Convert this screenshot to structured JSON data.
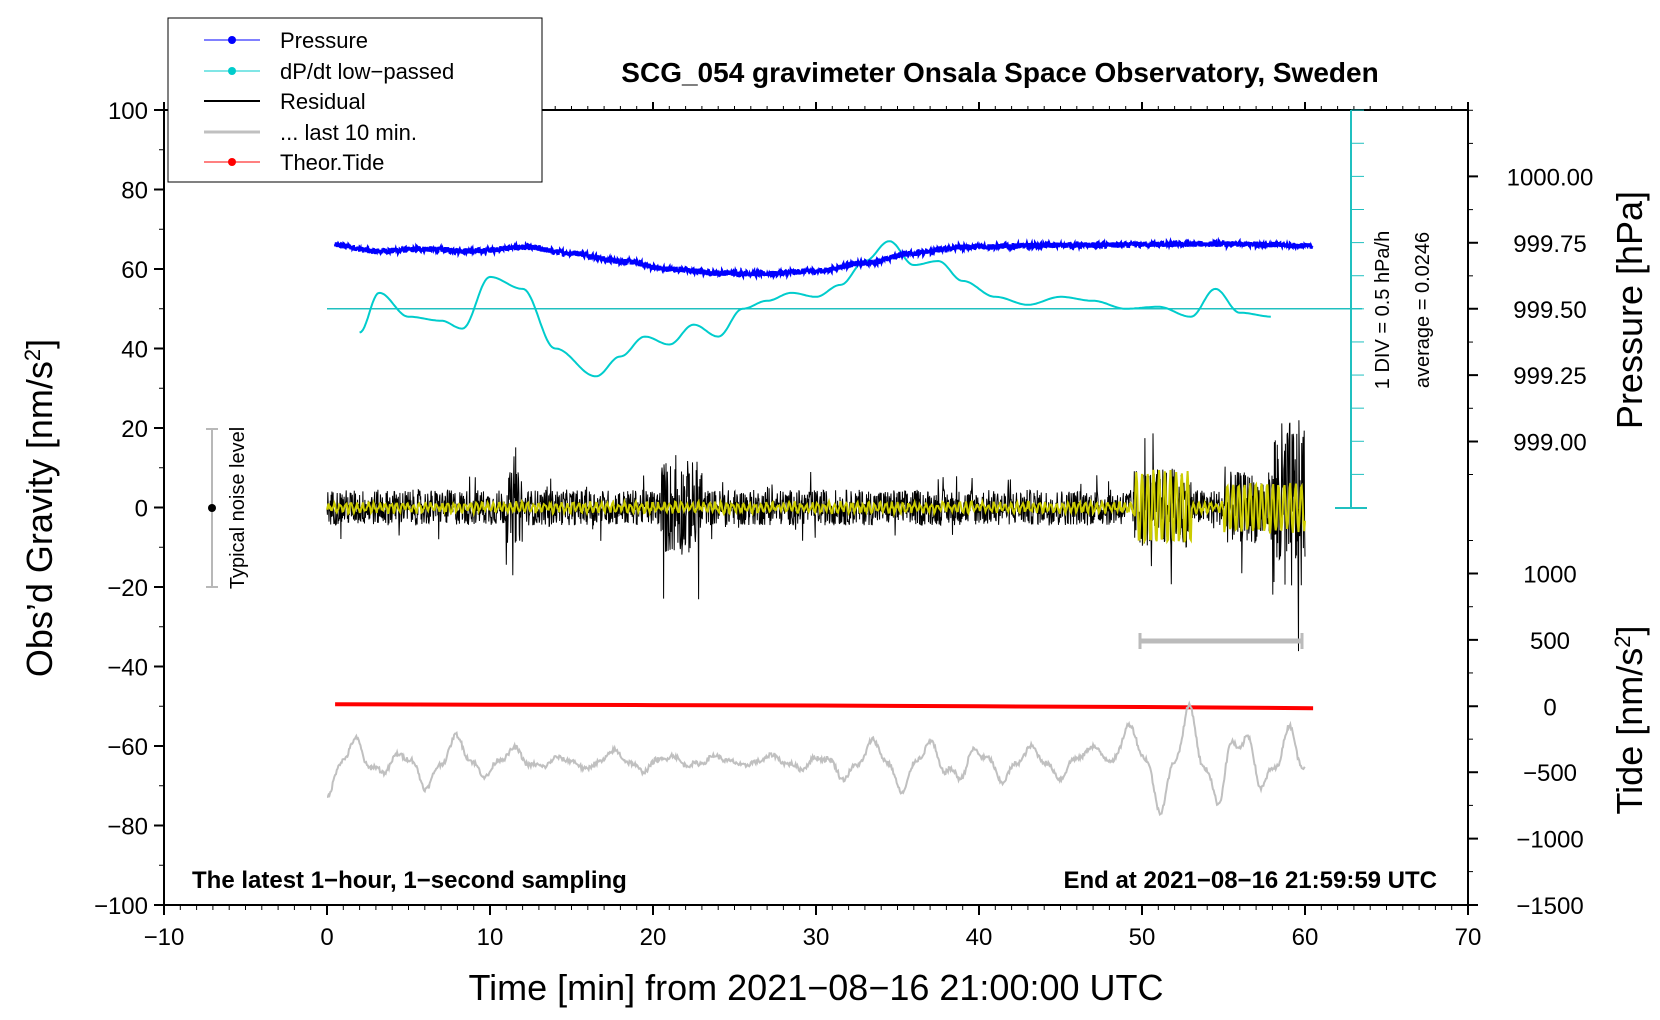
{
  "chart_data": {
    "type": "line",
    "title": "SCG_054 gravimeter Onsala Space Observatory, Sweden",
    "xlabel": "Time [min] from 2021−08−16 21:00:00 UTC",
    "ylabel": "Obs’d Gravity [nm/s²]",
    "ylabel_main": "Obs’d Gravity [nm/s",
    "ylabel_sup": "2",
    "ylabel_close": "]",
    "y2label_pressure": "Pressure [hPa]",
    "y2label_tide_main": "Tide [nm/s",
    "y2label_tide_sup": "2",
    "y2label_tide_close": "]",
    "xlim": [
      -10,
      70
    ],
    "ylim": [
      -100,
      100
    ],
    "x_ticks": [
      -10,
      0,
      10,
      20,
      30,
      40,
      50,
      60,
      70
    ],
    "x_tick_labels": [
      "−10",
      "0",
      "10",
      "20",
      "30",
      "40",
      "50",
      "60",
      "70"
    ],
    "y_ticks": [
      100,
      80,
      60,
      40,
      20,
      0,
      -20,
      -40,
      -60,
      -80,
      -100
    ],
    "y_tick_labels": [
      "100",
      "80",
      "60",
      "40",
      "20",
      "0",
      "−20",
      "−40",
      "−60",
      "−80",
      "−100"
    ],
    "pressure_axis": {
      "ticks": [
        1000.0,
        999.75,
        999.5,
        999.25,
        999.0
      ],
      "labels": [
        "1000.00",
        "999.75",
        "999.50",
        "999.25",
        "999.00"
      ],
      "y_positions_gravity": [
        83.3,
        66.6,
        50,
        33.3,
        16.6
      ]
    },
    "tide_axis": {
      "ticks": [
        1000,
        500,
        0,
        -500,
        -1000,
        -1500
      ],
      "labels": [
        "1000",
        "500",
        "0",
        "−500",
        "−1000",
        "−1500"
      ],
      "y_positions_gravity": [
        -16.6,
        -33.3,
        -50,
        -66.6,
        -83.3,
        -100
      ]
    },
    "series": [
      {
        "name": "Pressure",
        "color": "#0000ff",
        "x": [
          0.5,
          3,
          6,
          9,
          12,
          15,
          18,
          21,
          24,
          27,
          30,
          33,
          36,
          39,
          42,
          45,
          48,
          51,
          54,
          57,
          60.5
        ],
        "y": [
          66,
          64.5,
          65,
          64.5,
          65.5,
          64,
          62,
          60,
          59,
          58.8,
          59.5,
          61.5,
          64,
          65.5,
          65.8,
          66,
          66,
          66.2,
          66.3,
          66.2,
          65.8
        ]
      },
      {
        "name": "dP/dt low−passed",
        "color": "#00cccc",
        "x": [
          2,
          3.2,
          5,
          7,
          8.3,
          10,
          12,
          14,
          16.5,
          18,
          19.5,
          21,
          22.5,
          24,
          25.5,
          27,
          28.5,
          30,
          31.5,
          33,
          34.5,
          36,
          37.5,
          39,
          41,
          43,
          45,
          47,
          49,
          51,
          53,
          54.5,
          56,
          58
        ],
        "y": [
          44,
          54,
          48,
          47,
          45,
          58,
          55,
          40,
          33,
          38,
          43,
          41,
          46,
          43,
          50,
          52,
          54,
          53,
          56,
          62,
          67,
          61,
          62,
          57,
          53,
          51,
          53,
          52,
          50,
          50.5,
          48,
          55,
          49,
          48
        ]
      },
      {
        "name": "Residual",
        "color": "#000000",
        "x": [
          0,
          60
        ],
        "y": [
          0,
          0
        ]
      },
      {
        "name": "... last 10 min.",
        "color": "#c0c0c0",
        "x": [
          0,
          1.6,
          3,
          4.7,
          6.3,
          8,
          9.6,
          11.2,
          12.8,
          14.4,
          16,
          17.6,
          19.2,
          20.8,
          22.4,
          24,
          25.6,
          27.2,
          28.8,
          30.4,
          32,
          33.6,
          35.2,
          36.8,
          38.4,
          40,
          41.6,
          43.2,
          44.8,
          46.4,
          48,
          49.6,
          51.2,
          52.8,
          54.4,
          56,
          57.6,
          59.2,
          60
        ],
        "y": [
          -73,
          -57,
          -70,
          -60,
          -72,
          -57,
          -68,
          -59,
          -67,
          -62,
          -66,
          -61,
          -67,
          -61,
          -66,
          -62,
          -65,
          -62,
          -67,
          -61,
          -70,
          -58,
          -72,
          -57,
          -73,
          -58,
          -70,
          -60,
          -69,
          -59,
          -62,
          -53,
          -77,
          -49,
          -79,
          -48,
          -75,
          -54,
          -71
        ]
      },
      {
        "name": "Theor.Tide",
        "color": "#ff0000",
        "x": [
          0.5,
          10,
          20,
          30,
          40,
          50,
          60.5
        ],
        "y": [
          -49.5,
          -49.6,
          -49.7,
          -49.8,
          -50,
          -50.2,
          -50.5
        ]
      }
    ],
    "legend": [
      "Pressure",
      "dP/dt low−passed",
      "Residual",
      "... last 10 min.",
      "Theor.Tide"
    ],
    "legend_position": "top-left",
    "annotations": {
      "noise_label": "Typical noise level",
      "div_label": "1 DIV = 0.5 hPa/h",
      "average_label": "average = 0.0246",
      "footer_left": "The latest 1−hour, 1−second sampling",
      "footer_right": "End at 2021−08−16 21:59:59 UTC"
    }
  },
  "colors": {
    "pressure": "#0000ff",
    "dpdt": "#00cccc",
    "residual": "#000000",
    "residual_smooth": "#cccc00",
    "last10": "#c0c0c0",
    "tide": "#ff0000"
  }
}
